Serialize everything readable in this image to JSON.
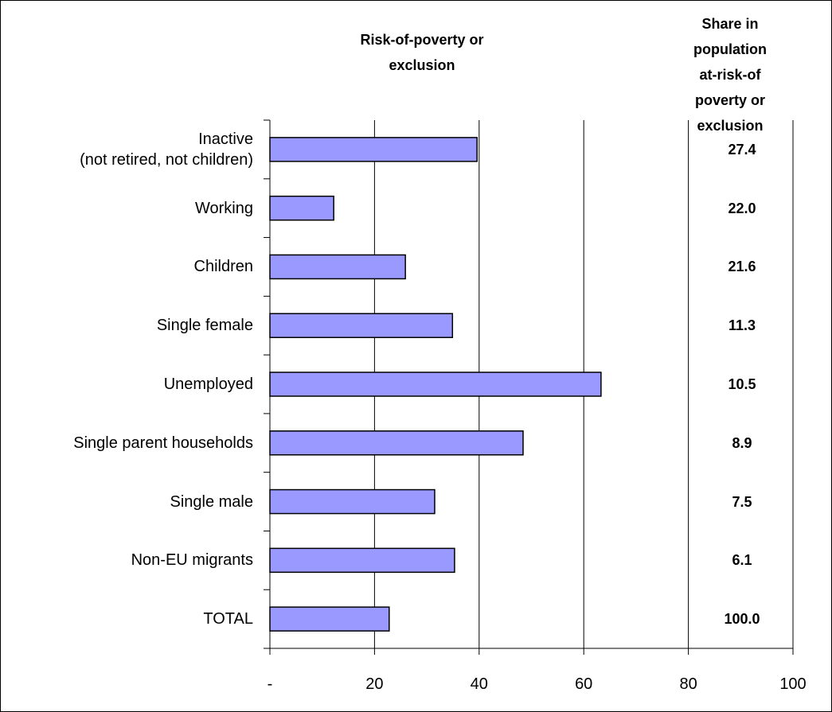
{
  "chart_data": {
    "type": "bar",
    "title": "Risk-of-poverty or\nexclusion",
    "share_title": "Share in population\nat-risk-of poverty or\nexclusion",
    "categories": [
      "Inactive\n(not retired, not children)",
      "Working",
      "Children",
      "Single female",
      "Unemployed",
      "Single parent households",
      "Single male",
      "Non-EU migrants",
      "TOTAL"
    ],
    "values": [
      39.6,
      12.2,
      25.9,
      34.9,
      63.3,
      48.4,
      31.5,
      35.3,
      22.8
    ],
    "share_labels": [
      "27.4",
      "22.0",
      "21.6",
      "11.3",
      "10.5",
      "8.9",
      "7.5",
      "6.1",
      "100.0"
    ],
    "color": "#9999ff",
    "xlim": [
      0,
      100
    ],
    "xticks": [
      {
        "value": 0,
        "label": "-"
      },
      20,
      40,
      60,
      80,
      100
    ],
    "grid": true
  }
}
